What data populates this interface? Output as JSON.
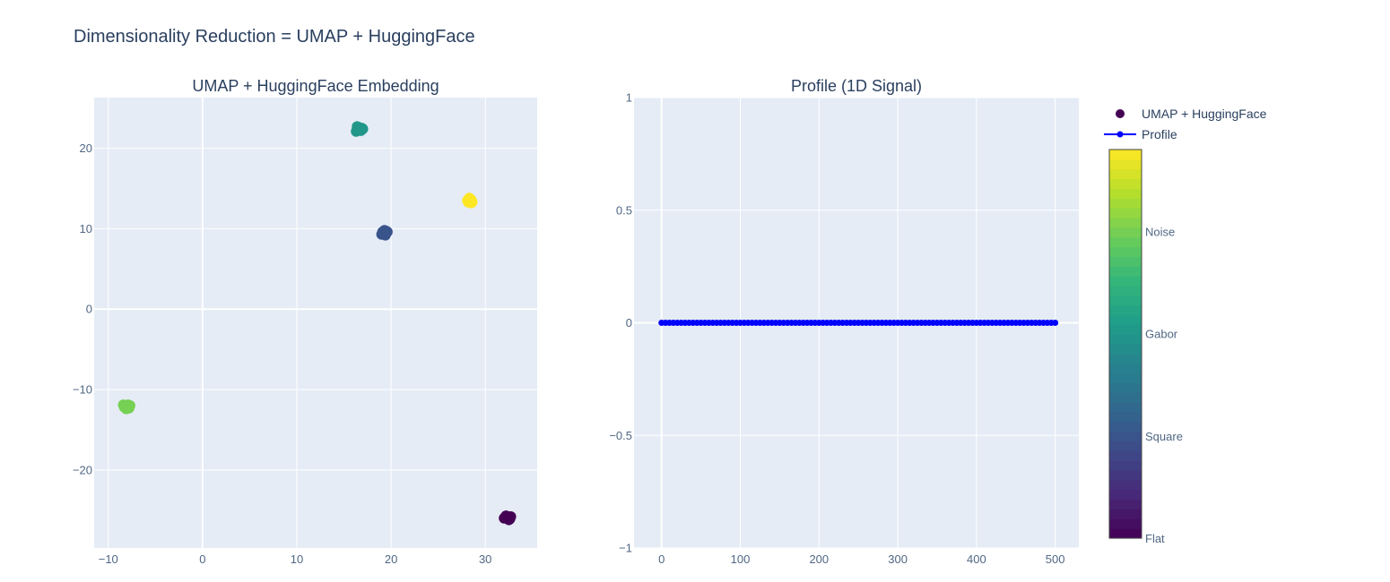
{
  "title": "Dimensionality Reduction = UMAP + HuggingFace",
  "colors": {
    "plot_bg": "#e5ecf6",
    "grid": "#ffffff",
    "profile_line": "#0000ff",
    "viridis": [
      "#440154",
      "#482878",
      "#3e4989",
      "#31688e",
      "#26828e",
      "#1f9e89",
      "#35b779",
      "#6ece58",
      "#b5de2b",
      "#fde725"
    ]
  },
  "legend": {
    "items": [
      {
        "label": "UMAP + HuggingFace",
        "symbol": "circle"
      },
      {
        "label": "Profile",
        "symbol": "line-marker"
      }
    ]
  },
  "colorbar": {
    "ticks": [
      {
        "label": "Flat",
        "value": 0
      },
      {
        "label": "Square",
        "value": 1
      },
      {
        "label": "Gabor",
        "value": 2
      },
      {
        "label": "Noise",
        "value": 3
      }
    ],
    "range": [
      0,
      3.8
    ]
  },
  "chart_data": [
    {
      "type": "scatter",
      "title": "UMAP + HuggingFace Embedding",
      "xlim": [
        -11.5,
        35.5
      ],
      "ylim": [
        -29.7,
        26.3
      ],
      "xticks": [
        -10,
        0,
        10,
        20,
        30
      ],
      "yticks": [
        -20,
        -10,
        0,
        10,
        20
      ],
      "xtick_labels": [
        "−10",
        "0",
        "10",
        "20",
        "30"
      ],
      "ytick_labels": [
        "−20",
        "−10",
        "0",
        "10",
        "20"
      ],
      "grid": true,
      "series": [
        {
          "name": "UMAP + HuggingFace",
          "class": "Flat",
          "color_value": 0,
          "points": [
            [
              32.2,
              -25.7
            ],
            [
              32.6,
              -26.1
            ],
            [
              32.0,
              -26.0
            ],
            [
              32.4,
              -25.8
            ],
            [
              32.5,
              -26.2
            ],
            [
              32.1,
              -25.9
            ],
            [
              32.3,
              -26.0
            ],
            [
              32.7,
              -25.8
            ]
          ]
        },
        {
          "name": "UMAP + HuggingFace",
          "class": "Square",
          "color_value": 1,
          "points": [
            [
              19.2,
              9.5
            ],
            [
              19.5,
              9.7
            ],
            [
              19.0,
              9.3
            ],
            [
              19.4,
              9.4
            ],
            [
              19.6,
              9.6
            ],
            [
              19.1,
              9.6
            ],
            [
              19.3,
              9.8
            ],
            [
              19.4,
              9.2
            ]
          ]
        },
        {
          "name": "UMAP + HuggingFace",
          "class": "Gabor",
          "color_value": 2,
          "points": [
            [
              16.4,
              22.7
            ],
            [
              16.7,
              22.3
            ],
            [
              16.9,
              22.5
            ],
            [
              16.3,
              22.1
            ],
            [
              16.6,
              22.6
            ],
            [
              16.8,
              22.2
            ],
            [
              16.5,
              22.4
            ],
            [
              17.0,
              22.4
            ]
          ]
        },
        {
          "name": "UMAP + HuggingFace",
          "class": "Noise",
          "color_value": 3,
          "points": [
            [
              -8.3,
              -12.2
            ],
            [
              -7.9,
              -11.9
            ],
            [
              -8.1,
              -12.4
            ],
            [
              -7.7,
              -12.0
            ],
            [
              -8.4,
              -11.9
            ],
            [
              -8.0,
              -12.1
            ],
            [
              -7.8,
              -12.3
            ],
            [
              -8.2,
              -12.0
            ]
          ]
        },
        {
          "name": "UMAP + HuggingFace",
          "class": "",
          "color_value": 3.8,
          "points": [
            [
              28.2,
              13.3
            ],
            [
              28.5,
              13.6
            ],
            [
              28.3,
              13.8
            ],
            [
              28.6,
              13.3
            ],
            [
              28.4,
              13.5
            ],
            [
              28.1,
              13.5
            ],
            [
              28.5,
              13.2
            ],
            [
              28.3,
              13.4
            ]
          ]
        }
      ]
    },
    {
      "type": "line",
      "title": "Profile (1D Signal)",
      "xlim": [
        -35,
        530
      ],
      "ylim": [
        -1,
        1
      ],
      "xticks": [
        0,
        100,
        200,
        300,
        400,
        500
      ],
      "yticks": [
        -1,
        -0.5,
        0,
        0.5,
        1
      ],
      "xtick_labels": [
        "0",
        "100",
        "200",
        "300",
        "400",
        "500"
      ],
      "ytick_labels": [
        "−1",
        "−0.5",
        "0",
        "0.5",
        "1"
      ],
      "grid": true,
      "series": [
        {
          "name": "Profile",
          "x_range": [
            0,
            500
          ],
          "step": 5,
          "y_constant": 0
        }
      ]
    }
  ]
}
